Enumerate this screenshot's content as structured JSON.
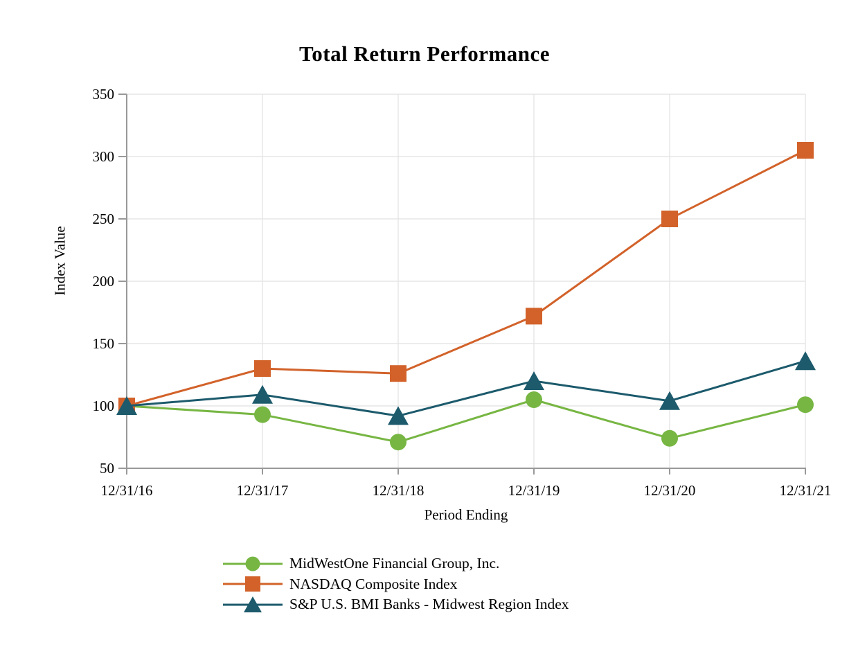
{
  "chart_data": {
    "type": "line",
    "title": "Total Return Performance",
    "xlabel": "Period Ending",
    "ylabel": "Index Value",
    "x": [
      "12/31/16",
      "12/31/17",
      "12/31/18",
      "12/31/19",
      "12/31/20",
      "12/31/21"
    ],
    "ylim": [
      50,
      350
    ],
    "yticks": [
      50,
      100,
      150,
      200,
      250,
      300,
      350
    ],
    "grid": true,
    "legend_position": "bottom-left",
    "series": [
      {
        "name": "MidWestOne Financial Group, Inc.",
        "marker": "circle",
        "color": "#77B643",
        "values": [
          100,
          93,
          71,
          105,
          74,
          101
        ]
      },
      {
        "name": "NASDAQ Composite Index",
        "marker": "square",
        "color": "#D2622A",
        "values": [
          100,
          130,
          126,
          172,
          250,
          305
        ]
      },
      {
        "name": "S&P U.S. BMI Banks - Midwest Region Index",
        "marker": "triangle",
        "color": "#1C5A6C",
        "values": [
          100,
          109,
          92,
          120,
          104,
          136
        ]
      }
    ],
    "colors": {
      "axis": "#999999",
      "grid": "#E5E5E5",
      "text": "#000000",
      "background": "#FFFFFF"
    }
  }
}
